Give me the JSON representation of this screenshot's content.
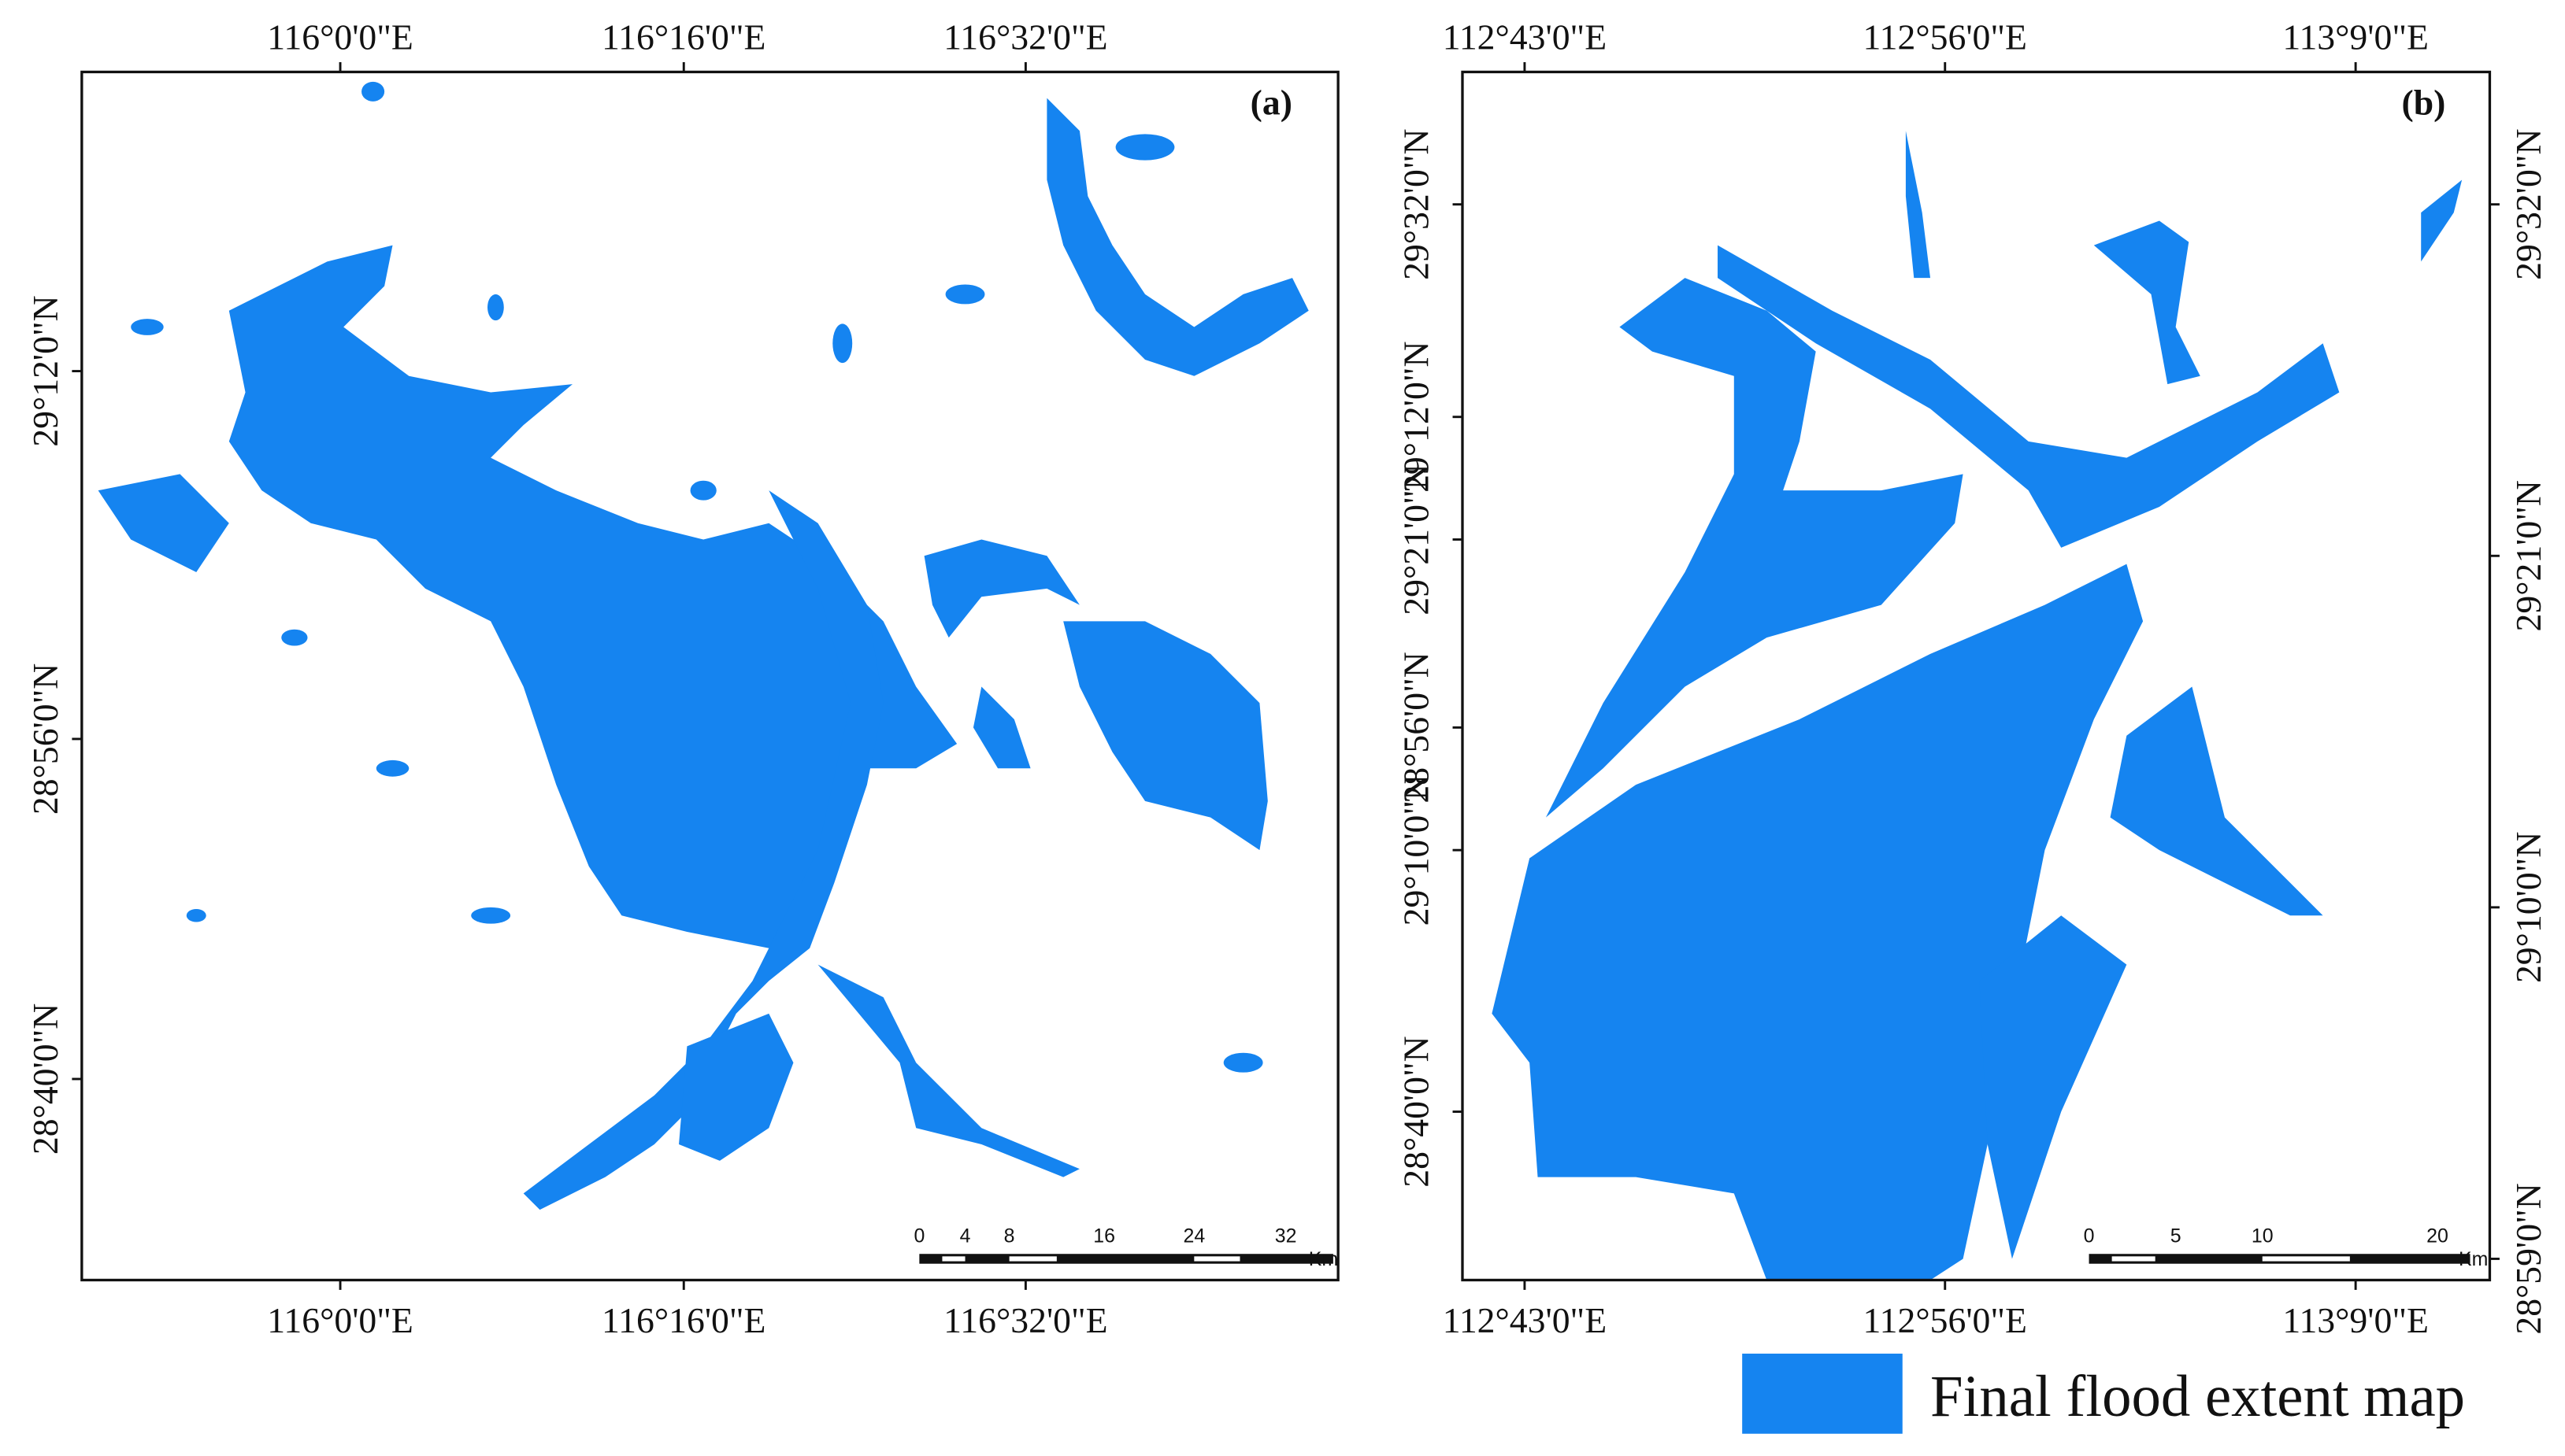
{
  "maps": [
    {
      "panel_label": "(a)",
      "lon_labels_top": [
        "116°0'0\"E",
        "116°16'0\"E",
        "116°32'0\"E"
      ],
      "lon_labels_bottom": [
        "116°0'0\"E",
        "116°16'0\"E",
        "116°32'0\"E"
      ],
      "lat_labels_left": [
        "29°12'0\"N",
        "28°56'0\"N",
        "28°40'0\"N"
      ],
      "scale_labels": [
        "0",
        "4",
        "8",
        "16",
        "24",
        "32"
      ],
      "scale_unit": "Km"
    },
    {
      "panel_label": "(b)",
      "lon_labels_top": [
        "112°43'0\"E",
        "112°56'0\"E",
        "113°9'0\"E"
      ],
      "lon_labels_bottom": [
        "112°43'0\"E",
        "112°56'0\"E",
        "113°9'0\"E"
      ],
      "lat_labels_left": [
        "29°32'0\"N",
        "29°12'0\"N",
        "29°21'0\"N",
        "28°56'0\"N",
        "29°10'0\"N",
        "28°40'0\"N"
      ],
      "lat_labels_right": [
        "29°32'0\"N",
        "29°21'0\"N",
        "29°10'0\"N",
        "28°59'0\"N"
      ],
      "scale_labels": [
        "0",
        "5",
        "10",
        "20"
      ],
      "scale_unit": "Km"
    }
  ],
  "legend": {
    "label": "Final flood extent map"
  }
}
